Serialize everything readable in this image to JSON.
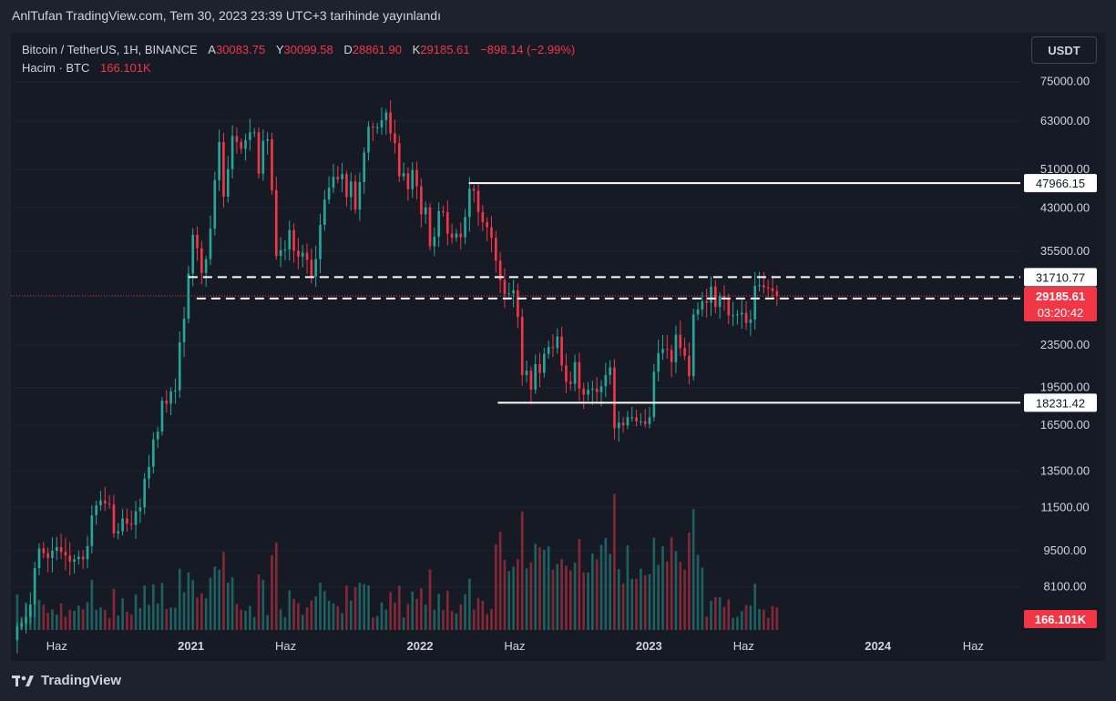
{
  "caption": "AnlTufan TradingView.com, Tem 30, 2023 23:39 UTC+3 tarihinde yayınlandı",
  "footer": {
    "brand": "TradingView",
    "logo_icon": "tradingview-logo-icon"
  },
  "legend": {
    "symbol": "Bitcoin / TetherUS, 1H, BINANCE",
    "o_label": "A",
    "o_value": "30083.75",
    "h_label": "Y",
    "h_value": "30099.58",
    "l_label": "D",
    "l_value": "28861.90",
    "c_label": "K",
    "c_value": "29185.61",
    "change": "−898.14 (−2.99%)",
    "volume_label": "Hacim · BTC",
    "volume_value": "166.101K"
  },
  "unit_button": "USDT",
  "colors": {
    "up": "#26a69a",
    "down": "#f23645",
    "background": "#161a25",
    "outer": "#1e222d",
    "axis_text": "#d1d4dc",
    "level_line": "#ffffff"
  },
  "chart_data": {
    "type": "candlestick",
    "scale": "log",
    "y_axis_ticks": [
      "75000.00",
      "63000.00",
      "51000.00",
      "43000.00",
      "35500.00",
      "23500.00",
      "19500.00",
      "16500.00",
      "13500.00",
      "11500.00",
      "9500.00",
      "8100.00"
    ],
    "y_axis_tick_values": [
      75000,
      63000,
      51000,
      43000,
      35500,
      23500,
      19500,
      16500,
      13500,
      11500,
      9500,
      8100
    ],
    "ylim": [
      6700,
      93000
    ],
    "x_axis_ticks": [
      {
        "label": "Haz",
        "date": "2020-06-01"
      },
      {
        "label": "2021",
        "date": "2021-01-01"
      },
      {
        "label": "Haz",
        "date": "2021-06-01"
      },
      {
        "label": "2022",
        "date": "2022-01-01"
      },
      {
        "label": "Haz",
        "date": "2022-06-01"
      },
      {
        "label": "2023",
        "date": "2023-01-01"
      },
      {
        "label": "Haz",
        "date": "2023-06-01"
      },
      {
        "label": "2024",
        "date": "2024-01-01"
      },
      {
        "label": "Haz",
        "date": "2024-06-01"
      }
    ],
    "xlim": [
      "2020-03-20",
      "2024-08-15"
    ],
    "horizontal_levels": [
      {
        "value": 47966.15,
        "label": "47966.15",
        "style": "solid",
        "from": "2022-03-20"
      },
      {
        "value": 31710.77,
        "label": "31710.77",
        "style": "dashed",
        "from": "2020-12-28"
      },
      {
        "value": 28850.0,
        "label": "28850.00",
        "style": "dashed",
        "from": "2021-01-10"
      },
      {
        "value": 18231.42,
        "label": "18231.42",
        "style": "solid",
        "from": "2022-05-05"
      }
    ],
    "last_price": {
      "value": 29185.61,
      "label": "29185.61",
      "countdown": "03:20:42"
    },
    "volume_last_label": "166.101K",
    "weekly_closes": [
      [
        "2020-03-23",
        6400
      ],
      [
        "2020-03-30",
        6800
      ],
      [
        "2020-04-06",
        6900
      ],
      [
        "2020-04-13",
        7100
      ],
      [
        "2020-04-20",
        7500
      ],
      [
        "2020-04-27",
        8800
      ],
      [
        "2020-05-04",
        9600
      ],
      [
        "2020-05-11",
        9400
      ],
      [
        "2020-05-18",
        9200
      ],
      [
        "2020-05-25",
        9500
      ],
      [
        "2020-06-01",
        9650
      ],
      [
        "2020-06-08",
        9450
      ],
      [
        "2020-06-15",
        9300
      ],
      [
        "2020-06-22",
        9050
      ],
      [
        "2020-06-29",
        9150
      ],
      [
        "2020-07-06",
        9250
      ],
      [
        "2020-07-13",
        9150
      ],
      [
        "2020-07-20",
        9700
      ],
      [
        "2020-07-27",
        11100
      ],
      [
        "2020-08-03",
        11600
      ],
      [
        "2020-08-10",
        11850
      ],
      [
        "2020-08-17",
        11700
      ],
      [
        "2020-08-24",
        11650
      ],
      [
        "2020-08-31",
        10250
      ],
      [
        "2020-09-07",
        10350
      ],
      [
        "2020-09-14",
        10950
      ],
      [
        "2020-09-21",
        10700
      ],
      [
        "2020-09-28",
        10650
      ],
      [
        "2020-10-05",
        11300
      ],
      [
        "2020-10-12",
        11500
      ],
      [
        "2020-10-19",
        13050
      ],
      [
        "2020-10-26",
        13750
      ],
      [
        "2020-11-02",
        15500
      ],
      [
        "2020-11-09",
        16050
      ],
      [
        "2020-11-16",
        18400
      ],
      [
        "2020-11-23",
        18150
      ],
      [
        "2020-11-30",
        19150
      ],
      [
        "2020-12-07",
        19250
      ],
      [
        "2020-12-14",
        23800
      ],
      [
        "2020-12-21",
        26400
      ],
      [
        "2020-12-28",
        32200
      ],
      [
        "2021-01-04",
        38200
      ],
      [
        "2021-01-11",
        36000
      ],
      [
        "2021-01-18",
        32300
      ],
      [
        "2021-01-25",
        34300
      ],
      [
        "2021-02-01",
        39250
      ],
      [
        "2021-02-08",
        48600
      ],
      [
        "2021-02-15",
        57500
      ],
      [
        "2021-02-22",
        45200
      ],
      [
        "2021-03-01",
        51000
      ],
      [
        "2021-03-08",
        59000
      ],
      [
        "2021-03-15",
        57500
      ],
      [
        "2021-03-22",
        55800
      ],
      [
        "2021-03-29",
        58000
      ],
      [
        "2021-04-05",
        60000
      ],
      [
        "2021-04-12",
        60000
      ],
      [
        "2021-04-19",
        50000
      ],
      [
        "2021-04-26",
        57800
      ],
      [
        "2021-05-03",
        58200
      ],
      [
        "2021-05-10",
        46500
      ],
      [
        "2021-05-17",
        34800
      ],
      [
        "2021-05-24",
        35700
      ],
      [
        "2021-05-31",
        35800
      ],
      [
        "2021-06-07",
        39000
      ],
      [
        "2021-06-14",
        35600
      ],
      [
        "2021-06-21",
        34700
      ],
      [
        "2021-06-28",
        35300
      ],
      [
        "2021-07-05",
        34200
      ],
      [
        "2021-07-12",
        31800
      ],
      [
        "2021-07-19",
        34300
      ],
      [
        "2021-07-26",
        39900
      ],
      [
        "2021-08-02",
        44600
      ],
      [
        "2021-08-09",
        47000
      ],
      [
        "2021-08-16",
        49300
      ],
      [
        "2021-08-23",
        48800
      ],
      [
        "2021-08-30",
        49900
      ],
      [
        "2021-09-06",
        45100
      ],
      [
        "2021-09-13",
        48300
      ],
      [
        "2021-09-20",
        42700
      ],
      [
        "2021-09-27",
        48200
      ],
      [
        "2021-10-04",
        54900
      ],
      [
        "2021-10-11",
        61500
      ],
      [
        "2021-10-18",
        61300
      ],
      [
        "2021-10-25",
        61300
      ],
      [
        "2021-11-01",
        63300
      ],
      [
        "2021-11-08",
        65500
      ],
      [
        "2021-11-15",
        59700
      ],
      [
        "2021-11-22",
        57200
      ],
      [
        "2021-11-29",
        49400
      ],
      [
        "2021-12-06",
        50100
      ],
      [
        "2021-12-13",
        46700
      ],
      [
        "2021-12-20",
        50800
      ],
      [
        "2021-12-27",
        47300
      ],
      [
        "2022-01-03",
        41800
      ],
      [
        "2022-01-10",
        43100
      ],
      [
        "2022-01-17",
        36300
      ],
      [
        "2022-01-24",
        37900
      ],
      [
        "2022-01-31",
        42400
      ],
      [
        "2022-02-07",
        42200
      ],
      [
        "2022-02-14",
        38400
      ],
      [
        "2022-02-21",
        37700
      ],
      [
        "2022-02-28",
        38400
      ],
      [
        "2022-03-07",
        37800
      ],
      [
        "2022-03-14",
        41300
      ],
      [
        "2022-03-21",
        46800
      ],
      [
        "2022-03-28",
        46400
      ],
      [
        "2022-04-04",
        42200
      ],
      [
        "2022-04-11",
        40400
      ],
      [
        "2022-04-18",
        39500
      ],
      [
        "2022-04-25",
        37700
      ],
      [
        "2022-05-02",
        34100
      ],
      [
        "2022-05-09",
        31300
      ],
      [
        "2022-05-16",
        29400
      ],
      [
        "2022-05-23",
        29500
      ],
      [
        "2022-05-30",
        29900
      ],
      [
        "2022-06-06",
        26600
      ],
      [
        "2022-06-13",
        20600
      ],
      [
        "2022-06-20",
        21000
      ],
      [
        "2022-06-27",
        19300
      ],
      [
        "2022-07-04",
        21600
      ],
      [
        "2022-07-11",
        20800
      ],
      [
        "2022-07-18",
        22600
      ],
      [
        "2022-07-25",
        23300
      ],
      [
        "2022-08-01",
        23200
      ],
      [
        "2022-08-08",
        24400
      ],
      [
        "2022-08-15",
        21500
      ],
      [
        "2022-08-22",
        20000
      ],
      [
        "2022-08-29",
        19800
      ],
      [
        "2022-09-05",
        21800
      ],
      [
        "2022-09-12",
        19400
      ],
      [
        "2022-09-19",
        18900
      ],
      [
        "2022-09-26",
        19300
      ],
      [
        "2022-10-03",
        19400
      ],
      [
        "2022-10-10",
        19100
      ],
      [
        "2022-10-17",
        19600
      ],
      [
        "2022-10-24",
        20600
      ],
      [
        "2022-10-31",
        21300
      ],
      [
        "2022-11-07",
        16300
      ],
      [
        "2022-11-14",
        16700
      ],
      [
        "2022-11-21",
        16500
      ],
      [
        "2022-11-28",
        17100
      ],
      [
        "2022-12-05",
        17100
      ],
      [
        "2022-12-12",
        16800
      ],
      [
        "2022-12-19",
        16800
      ],
      [
        "2022-12-26",
        16600
      ],
      [
        "2023-01-02",
        17100
      ],
      [
        "2023-01-09",
        20900
      ],
      [
        "2023-01-16",
        22700
      ],
      [
        "2023-01-23",
        23100
      ],
      [
        "2023-01-30",
        23000
      ],
      [
        "2023-02-06",
        21800
      ],
      [
        "2023-02-13",
        24600
      ],
      [
        "2023-02-20",
        23200
      ],
      [
        "2023-02-27",
        22400
      ],
      [
        "2023-03-06",
        20500
      ],
      [
        "2023-03-13",
        26900
      ],
      [
        "2023-03-20",
        27500
      ],
      [
        "2023-03-27",
        28500
      ],
      [
        "2023-04-03",
        28300
      ],
      [
        "2023-04-10",
        30400
      ],
      [
        "2023-04-17",
        27800
      ],
      [
        "2023-04-24",
        29200
      ],
      [
        "2023-05-01",
        28900
      ],
      [
        "2023-05-08",
        26800
      ],
      [
        "2023-05-15",
        26800
      ],
      [
        "2023-05-22",
        26900
      ],
      [
        "2023-05-29",
        27100
      ],
      [
        "2023-06-05",
        25900
      ],
      [
        "2023-06-12",
        26300
      ],
      [
        "2023-06-19",
        30500
      ],
      [
        "2023-06-26",
        30600
      ],
      [
        "2023-07-03",
        30300
      ],
      [
        "2023-07-10",
        30200
      ],
      [
        "2023-07-17",
        29800
      ],
      [
        "2023-07-24",
        29185.61
      ]
    ]
  }
}
